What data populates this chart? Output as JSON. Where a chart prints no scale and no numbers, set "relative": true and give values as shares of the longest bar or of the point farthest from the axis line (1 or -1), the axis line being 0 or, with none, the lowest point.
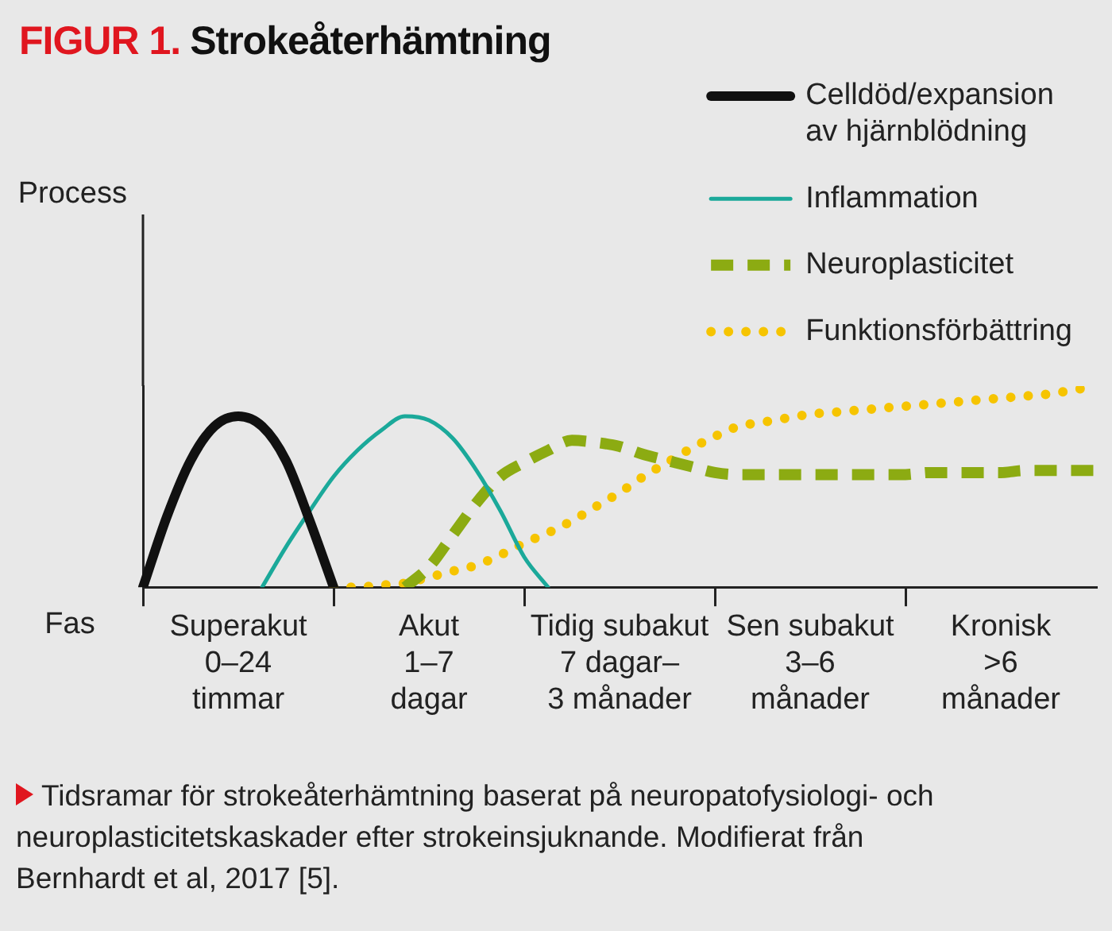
{
  "chart_data": {
    "type": "line",
    "title": "FIGUR 1. Strokeåterhämtning",
    "xlabel": "Fas",
    "categories": [
      null,
      null,
      null,
      null,
      "Superakut\n0–24\ntimmar",
      null,
      null,
      null,
      null,
      null,
      null,
      null,
      "Akut\n1–7\ndagar",
      null,
      null,
      null,
      null,
      null,
      null,
      null,
      "Tidig subakut\n7 dagar–\n3 månader",
      null,
      null,
      null,
      null,
      null,
      null,
      null,
      "Sen subakut\n3–6\nmånader",
      null,
      null,
      null,
      null,
      null,
      null,
      null,
      "Kronisk\n>6\nmånader",
      null,
      null,
      null,
      null
    ],
    "relative": true,
    "legend": "top right",
    "grid": false,
    "marker": "none",
    "series": [
      {
        "name": "Celldöd/expansion\nav hjärnblödning",
        "color": "#111111",
        "line_style": "solid",
        "values": [
          0,
          0.35,
          0.63,
          0.8,
          0.85,
          0.8,
          0.63,
          0.33,
          0,
          null,
          null,
          null,
          null,
          null,
          null,
          null,
          null,
          null,
          null,
          null,
          null,
          null,
          null,
          null,
          null,
          null,
          null,
          null,
          null,
          null,
          null,
          null,
          null,
          null,
          null,
          null,
          null,
          null,
          null,
          null,
          null
        ]
      },
      {
        "name": "Inflammation",
        "color": "#1ba99a",
        "line_style": "solid",
        "values": [
          null,
          null,
          null,
          null,
          null,
          0,
          0.2,
          0.38,
          0.55,
          0.68,
          0.78,
          0.85,
          0.83,
          0.74,
          0.58,
          0.38,
          0.15,
          0,
          null,
          null,
          null,
          null,
          null,
          null,
          null,
          null,
          null,
          null,
          null,
          null,
          null,
          null,
          null,
          null,
          null,
          null,
          null,
          null,
          null,
          null,
          null
        ]
      },
      {
        "name": "Neuroplasticitet",
        "color": "#8cab12",
        "line_style": "dashed",
        "values": [
          null,
          null,
          null,
          null,
          null,
          null,
          null,
          null,
          null,
          null,
          null,
          0,
          0.1,
          0.26,
          0.42,
          0.55,
          0.62,
          0.68,
          0.73,
          0.72,
          0.7,
          0.66,
          0.63,
          0.6,
          0.57,
          0.56,
          0.56,
          0.56,
          0.56,
          0.56,
          0.56,
          0.56,
          0.56,
          0.57,
          0.57,
          0.57,
          0.57,
          0.58,
          0.58,
          0.58,
          0.58
        ]
      },
      {
        "name": "Funktionsförbättring",
        "color": "#f6c400",
        "line_style": "dotted",
        "values": [
          null,
          null,
          null,
          null,
          null,
          null,
          null,
          null,
          0,
          0,
          0.01,
          0.02,
          0.05,
          0.08,
          0.11,
          0.16,
          0.22,
          0.27,
          0.33,
          0.4,
          0.47,
          0.55,
          0.62,
          0.69,
          0.75,
          0.8,
          0.82,
          0.84,
          0.86,
          0.87,
          0.88,
          0.89,
          0.9,
          0.91,
          0.92,
          0.93,
          0.94,
          0.95,
          0.96,
          0.98,
          1.0
        ]
      }
    ],
    "annotations": [
      "Process",
      "Tidsramar för strokeåterhämtning baserat på neuropatofysiologi- och neuroplasticitetskaskader efter strokeinsjuknande. Modifierat från Bernhardt et al, 2017 [5]."
    ]
  }
}
